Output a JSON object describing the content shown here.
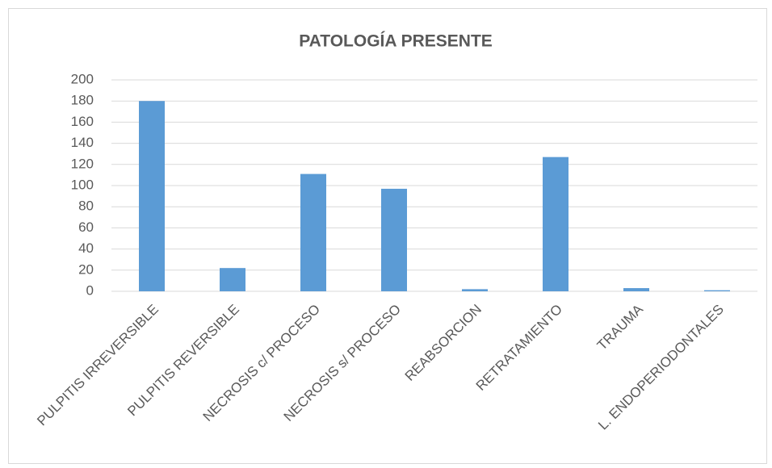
{
  "chart_data": {
    "type": "bar",
    "title": "PATOLOGÍA PRESENTE",
    "categories": [
      "PULPITIS IRREVERSIBLE",
      "PULPITIS REVERSIBLE",
      "NECROSIS c/ PROCESO",
      "NECROSIS s/ PROCESO",
      "REABSORCION",
      "RETRATAMIENTO",
      "TRAUMA",
      "L. ENDOPERIODONTALES"
    ],
    "values": [
      180,
      22,
      111,
      97,
      2,
      127,
      3,
      1
    ],
    "color": "#5b9bd5",
    "ylim": [
      0,
      200
    ],
    "yticks": [
      0,
      20,
      40,
      60,
      80,
      100,
      120,
      140,
      160,
      180,
      200
    ],
    "grid": true
  }
}
